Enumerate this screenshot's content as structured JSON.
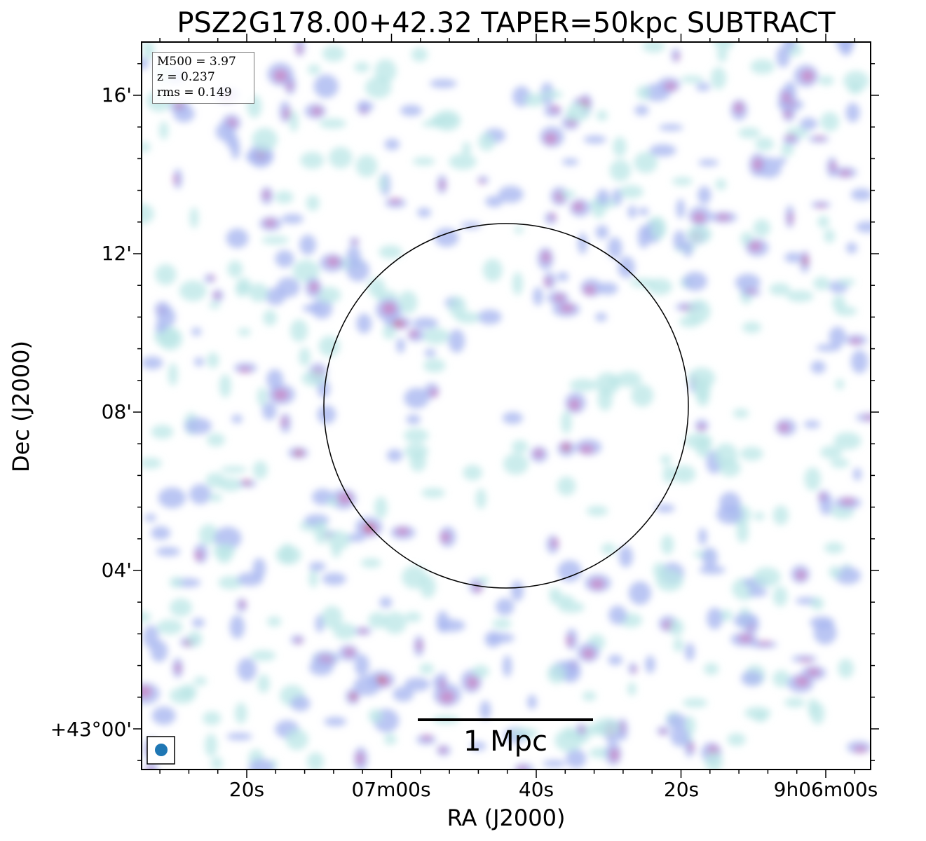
{
  "title": "PSZ2G178.00+42.32 TAPER=50kpc SUBTRACT",
  "xlabel": "RA (J2000)",
  "ylabel": "Dec (J2000)",
  "x_ticks": [
    "20s",
    "07m00s",
    "40s",
    "20s",
    "9h06m00s"
  ],
  "y_ticks": [
    "16'",
    "12'",
    "08'",
    "04'",
    "+43°00'"
  ],
  "info": {
    "m500": "M500 = 3.97",
    "z": "z = 0.237",
    "rms": "rms = 0.149"
  },
  "scale_bar": {
    "label": "1 Mpc"
  },
  "colors": {
    "low": "#b9e6e6",
    "mid": "#a9b8f0",
    "high": "#c98ac8",
    "peak": "#c8555a",
    "beam": "#1f77b4"
  }
}
